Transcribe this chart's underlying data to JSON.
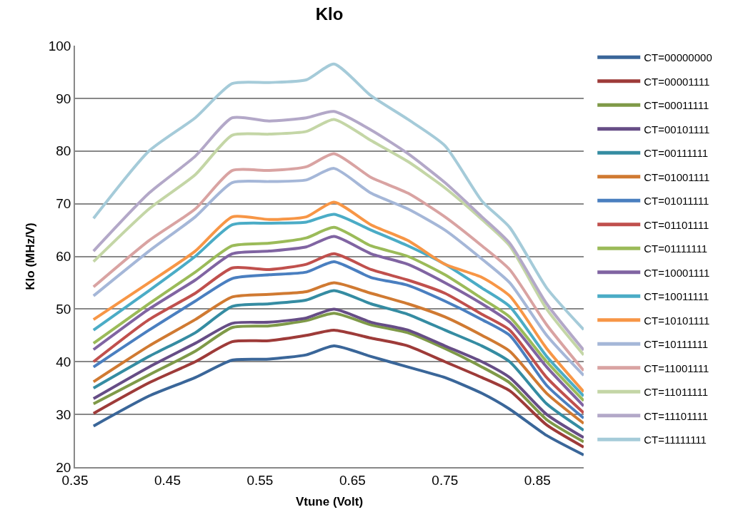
{
  "chart_data": {
    "type": "line",
    "title": "Klo",
    "xlabel": "Vtune (Volt)",
    "ylabel": "Klo (MHz/V)",
    "x": [
      0.37,
      0.43,
      0.48,
      0.52,
      0.56,
      0.6,
      0.63,
      0.67,
      0.71,
      0.75,
      0.79,
      0.82,
      0.86,
      0.9
    ],
    "xlim": [
      0.35,
      0.9
    ],
    "xticks": [
      0.35,
      0.45,
      0.55,
      0.65,
      0.75,
      0.85
    ],
    "ylim": [
      20,
      100
    ],
    "yticks": [
      20,
      30,
      40,
      50,
      60,
      70,
      80,
      90,
      100
    ],
    "grid": "y",
    "legend": "right",
    "marker": "none",
    "line_style": "solid",
    "series": [
      {
        "name": "CT=00000000",
        "color": "#3a6699",
        "values": [
          27.8,
          33.5,
          37,
          40.3,
          40.5,
          41.3,
          43,
          41,
          39,
          37,
          34,
          31,
          26,
          22.3
        ]
      },
      {
        "name": "CT=00001111",
        "color": "#9e3b39",
        "values": [
          30.2,
          36,
          40,
          43.8,
          44,
          45,
          46,
          44.5,
          43,
          40,
          37,
          34.5,
          28,
          23.8
        ]
      },
      {
        "name": "CT=00011111",
        "color": "#7f9a48",
        "values": [
          32,
          37.5,
          42,
          46.5,
          46.8,
          47.8,
          49.2,
          47,
          45.5,
          42.5,
          39,
          36,
          29,
          24.8
        ]
      },
      {
        "name": "CT=00101111",
        "color": "#664d86",
        "values": [
          33,
          39,
          43.5,
          47.3,
          47.5,
          48.3,
          50,
          47.5,
          46,
          43,
          40,
          37,
          30,
          25.6
        ]
      },
      {
        "name": "CT=00111111",
        "color": "#358ca2",
        "values": [
          35,
          41,
          45.5,
          50.5,
          51,
          51.7,
          53.5,
          51,
          49,
          46,
          43,
          40,
          32,
          27
        ]
      },
      {
        "name": "CT=01001111",
        "color": "#d07a32",
        "values": [
          36.2,
          43,
          48,
          52.3,
          52.8,
          53.3,
          55,
          53,
          51,
          48.5,
          45,
          42,
          34,
          28.3
        ]
      },
      {
        "name": "CT=01011111",
        "color": "#4a7fc0",
        "values": [
          39,
          46,
          51.5,
          55.8,
          56.5,
          57,
          59,
          56,
          54.5,
          51.5,
          48,
          45,
          35.5,
          29.3
        ]
      },
      {
        "name": "CT=01101111",
        "color": "#c0504d",
        "values": [
          40,
          48,
          53,
          57.8,
          57.5,
          58.5,
          60.5,
          57.5,
          55.5,
          53,
          49,
          46,
          37,
          30.3
        ]
      },
      {
        "name": "CT=01111111",
        "color": "#9bbb59",
        "values": [
          43.5,
          51,
          57,
          62,
          62.5,
          63.5,
          65.5,
          62,
          60,
          56.5,
          52,
          48.5,
          40,
          32.6
        ]
      },
      {
        "name": "CT=10001111",
        "color": "#8064a2",
        "values": [
          42.3,
          50,
          55.5,
          60.5,
          61,
          61.8,
          63.8,
          60.5,
          58.5,
          55,
          51,
          47.5,
          39,
          31.6
        ]
      },
      {
        "name": "CT=10011111",
        "color": "#4bacc6",
        "values": [
          46,
          53.5,
          60,
          66,
          66.3,
          66.5,
          68,
          65,
          62,
          58.5,
          54,
          50.5,
          41,
          33.5
        ]
      },
      {
        "name": "CT=10101111",
        "color": "#f79646",
        "values": [
          48,
          55,
          61,
          67.5,
          67,
          67.5,
          70.3,
          66,
          63,
          58.5,
          56,
          52.5,
          42.5,
          34.3
        ]
      },
      {
        "name": "CT=10111111",
        "color": "#a5b7d8",
        "values": [
          52.5,
          61,
          67.5,
          74,
          74.2,
          74.5,
          76.7,
          72,
          69,
          65,
          59.5,
          55,
          45,
          37.4
        ]
      },
      {
        "name": "CT=11001111",
        "color": "#d9a3a2",
        "values": [
          54.2,
          63,
          69,
          76.3,
          76.3,
          77,
          79.5,
          75,
          72,
          67.5,
          62,
          57.5,
          47,
          38.3
        ]
      },
      {
        "name": "CT=11011111",
        "color": "#c4d6a6",
        "values": [
          59,
          69,
          75.5,
          83,
          83.2,
          83.7,
          86,
          82,
          78,
          73,
          67,
          62,
          50,
          41.3
        ]
      },
      {
        "name": "CT=11101111",
        "color": "#b3a8c8",
        "values": [
          61,
          72,
          79,
          86.3,
          85.7,
          86.3,
          87.5,
          84,
          79.5,
          74,
          67.5,
          62.5,
          51,
          42.2
        ]
      },
      {
        "name": "CT=11111111",
        "color": "#a5cbd9",
        "values": [
          67.2,
          80,
          86.3,
          92.8,
          93,
          93.5,
          96.5,
          90.5,
          86,
          81,
          70.5,
          65.5,
          54,
          46.1
        ]
      }
    ]
  }
}
